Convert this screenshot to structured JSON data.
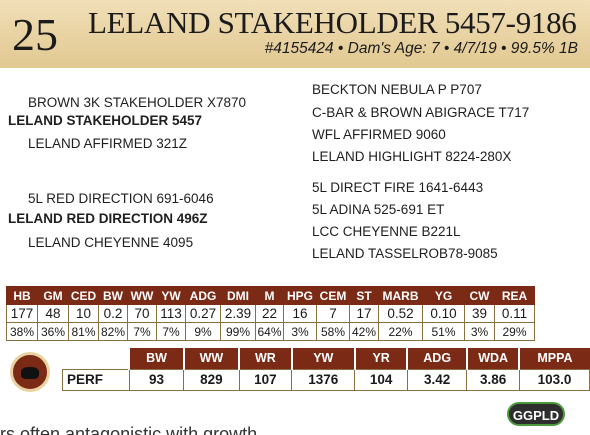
{
  "header": {
    "lot_number": "25",
    "name": "LELAND STAKEHOLDER 5457-9186",
    "info": "#4155424 • Dam's Age: 7 • 4/7/19 • 99.5% 1B"
  },
  "pedigree": {
    "sire_sire": "BROWN 3K STAKEHOLDER X7870",
    "sire": "LELAND STAKEHOLDER 5457",
    "sire_dam": "LELAND AFFIRMED 321Z",
    "dam_sire": "5L RED DIRECTION 691-6046",
    "dam": "LELAND RED DIRECTION 496Z",
    "dam_dam": "LELAND CHEYENNE 4095",
    "right": [
      "BECKTON NEBULA P P707",
      "C-BAR & BROWN ABIGRACE T717",
      "WFL AFFIRMED 9060",
      "LELAND HIGHLIGHT 8224-280X",
      "5L DIRECT FIRE 1641-6443",
      "5L ADINA 525-691 ET",
      "LCC CHEYENNE B221L",
      "LELAND TASSELROB78-9085"
    ]
  },
  "epd": {
    "headers": [
      "HB",
      "GM",
      "CED",
      "BW",
      "WW",
      "YW",
      "ADG",
      "DMI",
      "M",
      "HPG",
      "CEM",
      "ST",
      "MARB",
      "YG",
      "CW",
      "REA"
    ],
    "values": [
      "177",
      "48",
      "10",
      "0.2",
      "70",
      "113",
      "0.27",
      "2.39",
      "22",
      "16",
      "7",
      "17",
      "0.52",
      "0.10",
      "39",
      "0.11"
    ],
    "accuracy": [
      "38%",
      "36%",
      "81%",
      "82%",
      "7%",
      "7%",
      "9%",
      "99%",
      "64%",
      "3%",
      "58%",
      "42%",
      "22%",
      "51%",
      "3%",
      "29%"
    ]
  },
  "perf": {
    "label": "PERF",
    "headers": [
      "BW",
      "WW",
      "WR",
      "YW",
      "YR",
      "ADG",
      "WDA",
      "MPPA"
    ],
    "values": [
      "93",
      "829",
      "107",
      "1376",
      "104",
      "3.42",
      "3.86",
      "103.0"
    ]
  },
  "logo": {
    "text": "GGPLD"
  },
  "footer": {
    "text": "rs often antagonistic with growth"
  }
}
